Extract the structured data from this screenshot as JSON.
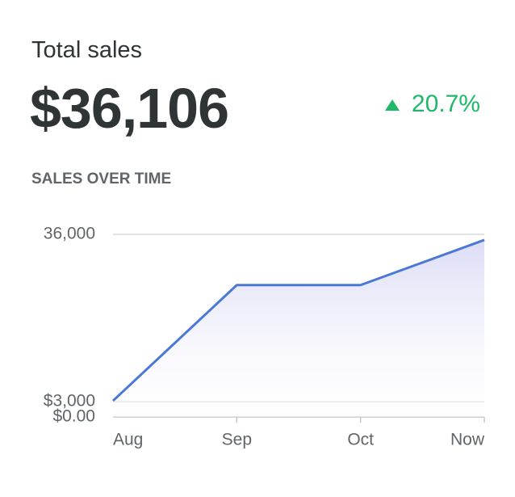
{
  "header": {
    "title": "Total sales",
    "total": "$36,106",
    "change": "20.7%"
  },
  "chart_data": {
    "type": "line",
    "title": "SALES OVER TIME",
    "categories": [
      "Aug",
      "Sep",
      "Oct",
      "Now"
    ],
    "series": [
      {
        "name": "Sales",
        "color": "#4a78d6",
        "values": [
          3200,
          26000,
          26000,
          34900
        ]
      }
    ],
    "ylim": [
      0,
      36000
    ],
    "yticks": [
      {
        "value": 0,
        "label": "$0.00"
      },
      {
        "value": 3000,
        "label": "$3,000"
      },
      {
        "value": 36000,
        "label": "36,000"
      }
    ],
    "grid": true
  }
}
